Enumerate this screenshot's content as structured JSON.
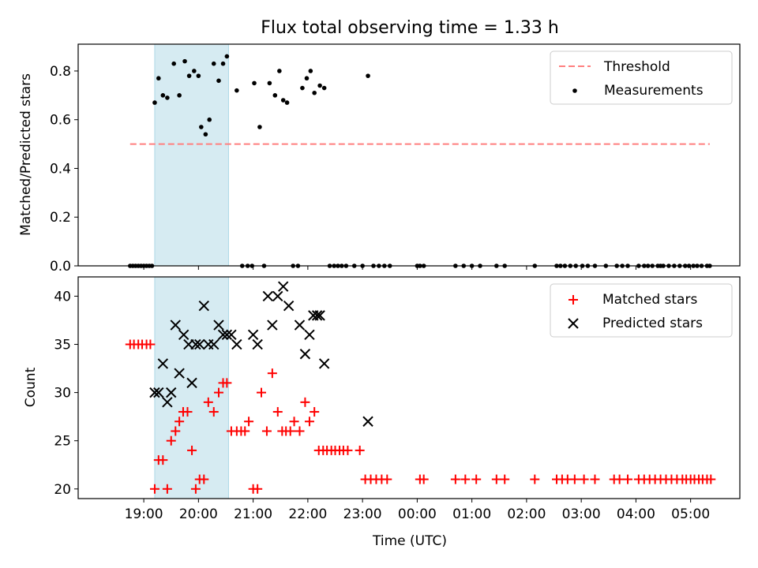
{
  "chart_data": [
    {
      "type": "scatter",
      "title": "Flux total observing time = 1.33 h",
      "xlabel": "",
      "ylabel": "Matched/Predicted stars",
      "xlim": [
        17.8,
        29.9
      ],
      "ylim": [
        0,
        0.91
      ],
      "yticks": [
        0.0,
        0.2,
        0.4,
        0.6,
        0.8
      ],
      "ytick_labels": [
        "0.0",
        "0.2",
        "0.4",
        "0.6",
        "0.8"
      ],
      "xticks": [
        19,
        20,
        21,
        22,
        23,
        24,
        25,
        26,
        27,
        28,
        29
      ],
      "highlight_span": [
        19.2,
        20.55
      ],
      "threshold": {
        "name": "Threshold",
        "value": 0.5,
        "x_range": [
          18.75,
          29.35
        ],
        "color": "#ff7f7f"
      },
      "legend": [
        "Threshold",
        "Measurements"
      ],
      "legend_position": "upper right",
      "series": [
        {
          "name": "Measurements",
          "color": "#000000",
          "x": [
            18.75,
            18.8,
            18.85,
            18.9,
            18.95,
            19.0,
            19.05,
            19.1,
            19.15,
            19.2,
            19.27,
            19.35,
            19.43,
            19.55,
            19.65,
            19.75,
            19.83,
            19.92,
            20.0,
            20.05,
            20.13,
            20.2,
            20.28,
            20.37,
            20.45,
            20.52,
            20.7,
            20.8,
            20.9,
            20.98,
            21.02,
            21.12,
            21.2,
            21.3,
            21.4,
            21.48,
            21.55,
            21.62,
            21.73,
            21.82,
            21.9,
            21.98,
            22.05,
            22.12,
            22.22,
            22.3,
            22.4,
            22.48,
            22.55,
            22.62,
            22.7,
            22.85,
            23.0,
            23.1,
            23.2,
            23.3,
            23.4,
            23.5,
            24.0,
            24.05,
            24.12,
            24.7,
            24.85,
            25.0,
            25.15,
            25.45,
            25.6,
            26.15,
            26.55,
            26.62,
            26.7,
            26.8,
            26.9,
            27.02,
            27.12,
            27.25,
            27.45,
            27.65,
            27.75,
            27.85,
            28.05,
            28.15,
            28.22,
            28.3,
            28.4,
            28.45,
            28.5,
            28.6,
            28.7,
            28.8,
            28.9,
            28.97,
            29.05,
            29.12,
            29.2,
            29.3,
            29.35
          ],
          "y": [
            0.0,
            0.0,
            0.0,
            0.0,
            0.0,
            0.0,
            0.0,
            0.0,
            0.0,
            0.67,
            0.77,
            0.7,
            0.69,
            0.83,
            0.7,
            0.84,
            0.78,
            0.8,
            0.78,
            0.57,
            0.54,
            0.6,
            0.83,
            0.76,
            0.83,
            0.86,
            0.72,
            0.0,
            0.0,
            0.0,
            0.75,
            0.57,
            0.0,
            0.75,
            0.7,
            0.8,
            0.68,
            0.67,
            0.0,
            0.0,
            0.73,
            0.77,
            0.8,
            0.71,
            0.74,
            0.73,
            0.0,
            0.0,
            0.0,
            0.0,
            0.0,
            0.0,
            0.0,
            0.78,
            0.0,
            0.0,
            0.0,
            0.0,
            0.0,
            0.0,
            0.0,
            0.0,
            0.0,
            0.0,
            0.0,
            0.0,
            0.0,
            0.0,
            0.0,
            0.0,
            0.0,
            0.0,
            0.0,
            0.0,
            0.0,
            0.0,
            0.0,
            0.0,
            0.0,
            0.0,
            0.0,
            0.0,
            0.0,
            0.0,
            0.0,
            0.0,
            0.0,
            0.0,
            0.0,
            0.0,
            0.0,
            0.0,
            0.0,
            0.0,
            0.0,
            0.0,
            0.0
          ]
        }
      ]
    },
    {
      "type": "scatter",
      "title": "",
      "xlabel": "Time (UTC)",
      "ylabel": "Count",
      "xlim": [
        17.8,
        29.9
      ],
      "ylim": [
        19,
        42
      ],
      "yticks": [
        20,
        25,
        30,
        35,
        40
      ],
      "ytick_labels": [
        "20",
        "25",
        "30",
        "35",
        "40"
      ],
      "xticks": [
        19,
        20,
        21,
        22,
        23,
        24,
        25,
        26,
        27,
        28,
        29
      ],
      "xtick_labels": [
        "19:00",
        "20:00",
        "21:00",
        "22:00",
        "23:00",
        "00:00",
        "01:00",
        "02:00",
        "03:00",
        "04:00",
        "05:00"
      ],
      "highlight_span": [
        19.2,
        20.55
      ],
      "legend": [
        "Matched stars",
        "Predicted stars"
      ],
      "legend_position": "upper right",
      "series": [
        {
          "name": "Matched stars",
          "color": "#ff0000",
          "marker": "plus",
          "x": [
            18.75,
            18.82,
            18.9,
            18.97,
            19.05,
            19.12,
            19.2,
            19.27,
            19.35,
            19.43,
            19.5,
            19.58,
            19.65,
            19.72,
            19.8,
            19.88,
            19.95,
            20.02,
            20.1,
            20.18,
            20.28,
            20.37,
            20.45,
            20.52,
            20.6,
            20.7,
            20.78,
            20.85,
            20.92,
            21.0,
            21.08,
            21.15,
            21.25,
            21.35,
            21.45,
            21.53,
            21.6,
            21.68,
            21.75,
            21.85,
            21.95,
            22.03,
            22.12,
            22.2,
            22.28,
            22.35,
            22.43,
            22.5,
            22.58,
            22.65,
            22.73,
            22.95,
            23.05,
            23.15,
            23.25,
            23.35,
            23.45,
            24.05,
            24.12,
            24.7,
            24.88,
            25.08,
            25.45,
            25.6,
            26.15,
            26.55,
            26.65,
            26.75,
            26.88,
            27.05,
            27.25,
            27.6,
            27.7,
            27.85,
            28.05,
            28.15,
            28.25,
            28.35,
            28.45,
            28.55,
            28.65,
            28.75,
            28.85,
            28.92,
            29.0,
            29.07,
            29.15,
            29.22,
            29.3,
            29.37
          ],
          "y": [
            35,
            35,
            35,
            35,
            35,
            35,
            20,
            23,
            23,
            20,
            25,
            26,
            27,
            28,
            28,
            24,
            20,
            21,
            21,
            29,
            28,
            30,
            31,
            31,
            26,
            26,
            26,
            26,
            27,
            20,
            20,
            30,
            26,
            32,
            28,
            26,
            26,
            26,
            27,
            26,
            29,
            27,
            28,
            24,
            24,
            24,
            24,
            24,
            24,
            24,
            24,
            24,
            21,
            21,
            21,
            21,
            21,
            21,
            21,
            21,
            21,
            21,
            21,
            21,
            21,
            21,
            21,
            21,
            21,
            21,
            21,
            21,
            21,
            21,
            21,
            21,
            21,
            21,
            21,
            21,
            21,
            21,
            21,
            21,
            21,
            21,
            21,
            21,
            21,
            21
          ]
        },
        {
          "name": "Predicted stars",
          "color": "#000000",
          "marker": "x",
          "x": [
            19.2,
            19.27,
            19.35,
            19.43,
            19.5,
            19.58,
            19.65,
            19.73,
            19.82,
            19.88,
            19.95,
            20.02,
            20.1,
            20.18,
            20.28,
            20.37,
            20.45,
            20.52,
            20.6,
            20.7,
            21.0,
            21.08,
            21.27,
            21.35,
            21.45,
            21.55,
            21.65,
            21.85,
            21.95,
            22.03,
            22.1,
            22.17,
            22.22,
            22.3,
            23.1
          ],
          "y": [
            30,
            30,
            33,
            29,
            30,
            37,
            32,
            36,
            35,
            31,
            35,
            35,
            39,
            35,
            35,
            37,
            36,
            36,
            36,
            35,
            36,
            35,
            40,
            37,
            40,
            41,
            39,
            37,
            34,
            36,
            38,
            38,
            38,
            33,
            27
          ]
        }
      ]
    }
  ]
}
